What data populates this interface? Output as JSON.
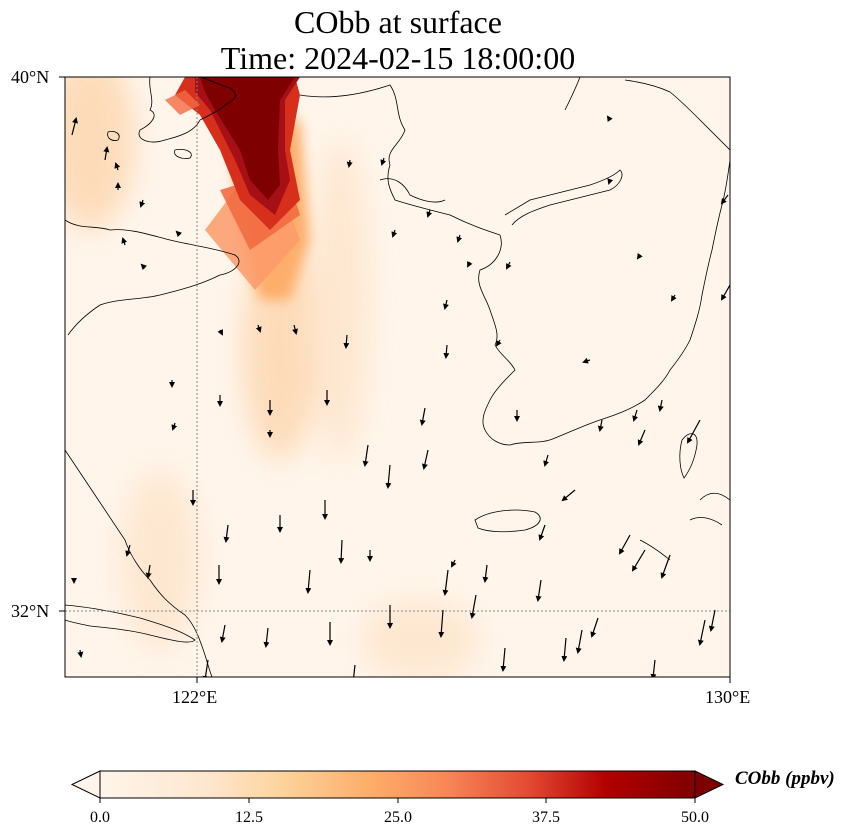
{
  "title_line1": "CObb at surface",
  "title_line2": "Time: 2024-02-15 18:00:00",
  "lat_labels": [
    "40°N",
    "32°N"
  ],
  "lon_labels": [
    "122°E",
    "130°E"
  ],
  "colorbar": {
    "label": "CObb (ppbv)",
    "ticks": [
      "0.0",
      "12.5",
      "25.0",
      "37.5",
      "50.0"
    ],
    "colors": [
      "#fff5eb",
      "#fdd9b4",
      "#fdae6b",
      "#f57e4e",
      "#d6301d",
      "#a50f15",
      "#7f0000"
    ]
  },
  "map_extent": {
    "lon_min": 120,
    "lon_max": 130,
    "lat_min": 31,
    "lat_max": 40
  },
  "colors": {
    "coast": "#000000",
    "gridline": "#888888",
    "arrow": "#000000"
  }
}
